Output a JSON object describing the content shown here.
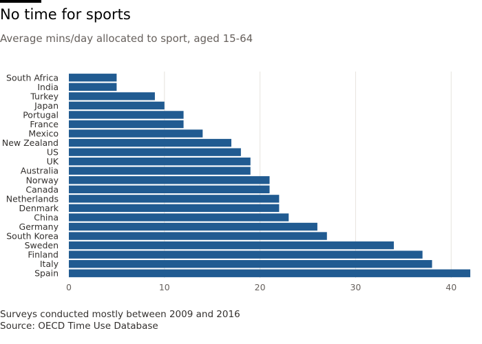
{
  "header": {
    "title": "No time for sports",
    "subtitle": "Average mins/day allocated to sport, aged 15-64"
  },
  "footer": {
    "note": "Surveys conducted mostly between 2009 and 2016",
    "source": "Source: OECD Time Use Database"
  },
  "colors": {
    "bar": "#215b91",
    "gridline": "#e6e2dd",
    "title": "#000000",
    "text": "#33302e"
  },
  "chart_data": {
    "type": "bar",
    "orientation": "horizontal",
    "title": "No time for sports",
    "subtitle": "Average mins/day allocated to sport, aged 15-64",
    "xlabel": "",
    "ylabel": "",
    "categories": [
      "South Africa",
      "India",
      "Turkey",
      "Japan",
      "Portugal",
      "France",
      "Mexico",
      "New Zealand",
      "US",
      "UK",
      "Australia",
      "Norway",
      "Canada",
      "Netherlands",
      "Denmark",
      "China",
      "Germany",
      "South Korea",
      "Sweden",
      "Finland",
      "Italy",
      "Spain"
    ],
    "values": [
      5,
      5,
      9,
      10,
      12,
      12,
      14,
      17,
      18,
      19,
      19,
      21,
      21,
      22,
      22,
      23,
      26,
      27,
      34,
      37,
      38,
      42
    ],
    "xlim": [
      0,
      42
    ],
    "xticks": [
      0,
      10,
      20,
      30,
      40
    ],
    "grid": "vertical",
    "legend": "none"
  }
}
